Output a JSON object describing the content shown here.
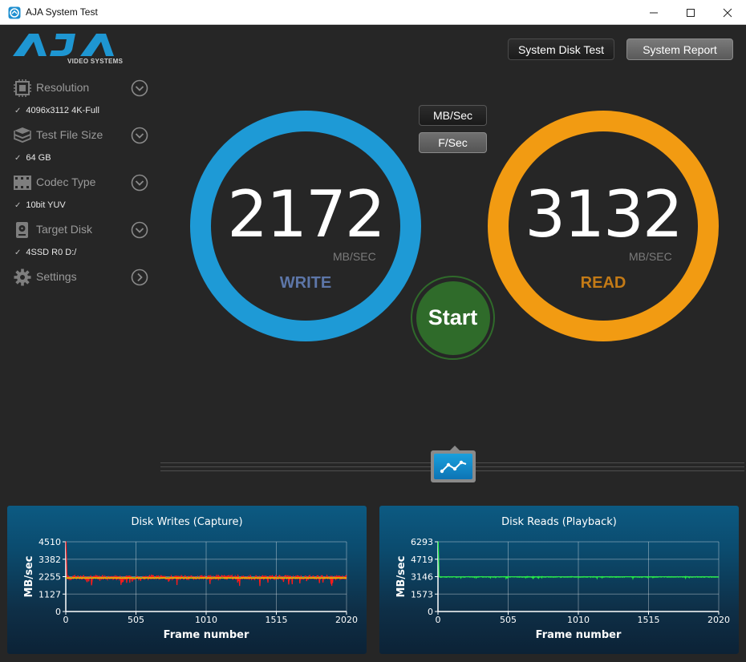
{
  "window": {
    "title": "AJA System Test"
  },
  "logo": {
    "brand": "AJA",
    "tagline": "VIDEO SYSTEMS"
  },
  "sidebar": {
    "items": [
      {
        "label": "Resolution",
        "value": "4096x3112 4K-Full",
        "icon": "resolution-icon"
      },
      {
        "label": "Test File Size",
        "value": "64 GB",
        "icon": "file-size-icon"
      },
      {
        "label": "Codec Type",
        "value": "10bit YUV",
        "icon": "codec-icon"
      },
      {
        "label": "Target Disk",
        "value": "4SSD R0 D:/",
        "icon": "disk-icon"
      },
      {
        "label": "Settings",
        "icon": "gear-icon"
      }
    ]
  },
  "toolbar": {
    "disk_test": "System Disk Test",
    "report": "System Report"
  },
  "units": {
    "mbsec": "MB/Sec",
    "fsec": "F/Sec"
  },
  "write": {
    "value": "2172",
    "unit": "MB/SEC",
    "label": "WRITE",
    "color": "#1e9ad6",
    "label_color": "#5d76a8"
  },
  "read": {
    "value": "3132",
    "unit": "MB/SEC",
    "label": "READ",
    "color": "#f29b12",
    "label_color": "#c37a16"
  },
  "start": {
    "label": "Start"
  },
  "chart_data": [
    {
      "type": "line",
      "title": "Disk Writes (Capture)",
      "xlabel": "Frame number",
      "ylabel": "MB/sec",
      "xticks": [
        "0",
        "505",
        "1010",
        "1515",
        "2020"
      ],
      "yticks": [
        "0",
        "1127",
        "2255",
        "3382",
        "4510"
      ],
      "xlim": [
        0,
        2020
      ],
      "ylim": [
        0,
        4510
      ],
      "series": [
        {
          "color": "#ff1a1a",
          "baseline": 2200,
          "start_value": 4510,
          "noise": 130
        },
        {
          "color": "#e0d000",
          "value": 2172
        }
      ]
    },
    {
      "type": "line",
      "title": "Disk Reads (Playback)",
      "xlabel": "Frame number",
      "ylabel": "MB/sec",
      "xticks": [
        "0",
        "505",
        "1010",
        "1515",
        "2020"
      ],
      "yticks": [
        "0",
        "1573",
        "3146",
        "4719",
        "6293"
      ],
      "xlim": [
        0,
        2020
      ],
      "ylim": [
        0,
        6293
      ],
      "series": [
        {
          "color": "#22ee44",
          "baseline": 3120,
          "start_value": 6293,
          "noise": 30
        }
      ]
    }
  ]
}
